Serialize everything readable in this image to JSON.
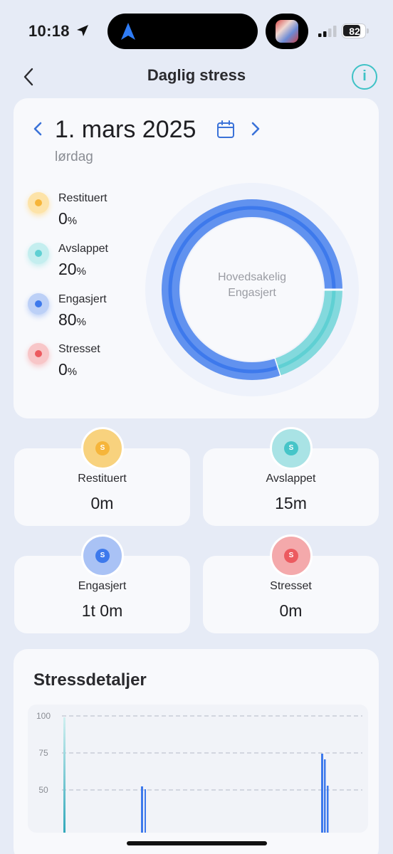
{
  "status_bar": {
    "time": "10:18",
    "battery": "82",
    "battery_level": 0.82
  },
  "header": {
    "title": "Daglig stress",
    "back_icon": "chevron-left-icon",
    "info_label": "i"
  },
  "date_nav": {
    "date": "1. mars 2025",
    "weekday": "lørdag"
  },
  "summary": {
    "center_label_line1": "Hovedsakelig",
    "center_label_line2": "Engasjert",
    "items": [
      {
        "name": "Restituert",
        "value": "0",
        "unit": "%",
        "percent": 0,
        "color": "#f6b53a",
        "halo": "#fde3a8"
      },
      {
        "name": "Avslappet",
        "value": "20",
        "unit": "%",
        "percent": 20,
        "color": "#5fd0d3",
        "halo": "#c4eeef"
      },
      {
        "name": "Engasjert",
        "value": "80",
        "unit": "%",
        "percent": 80,
        "color": "#3d79ec",
        "halo": "#bcd0f7"
      },
      {
        "name": "Stresset",
        "value": "0",
        "unit": "%",
        "percent": 0,
        "color": "#ec5a5f",
        "halo": "#f8c6c8"
      }
    ]
  },
  "durations": [
    {
      "name": "Restituert",
      "value": "0m",
      "badge": "S",
      "color": "#f6b53a",
      "halo": "#f8d27e"
    },
    {
      "name": "Avslappet",
      "value": "15m",
      "badge": "S",
      "color": "#46c5c8",
      "halo": "#a9e3e5"
    },
    {
      "name": "Engasjert",
      "value": "1t 0m",
      "badge": "S",
      "color": "#3d79ec",
      "halo": "#a9c2f5"
    },
    {
      "name": "Stresset",
      "value": "0m",
      "badge": "S",
      "color": "#ec5a5f",
      "halo": "#f4a9ab"
    }
  ],
  "details": {
    "title": "Stressdetaljer",
    "chart_data": {
      "type": "bar",
      "title": "Stressdetaljer",
      "ylim": [
        0,
        100
      ],
      "yticks": [
        "100",
        "75",
        "50"
      ],
      "grid": true,
      "visible_y_range": [
        50,
        100
      ]
    }
  }
}
